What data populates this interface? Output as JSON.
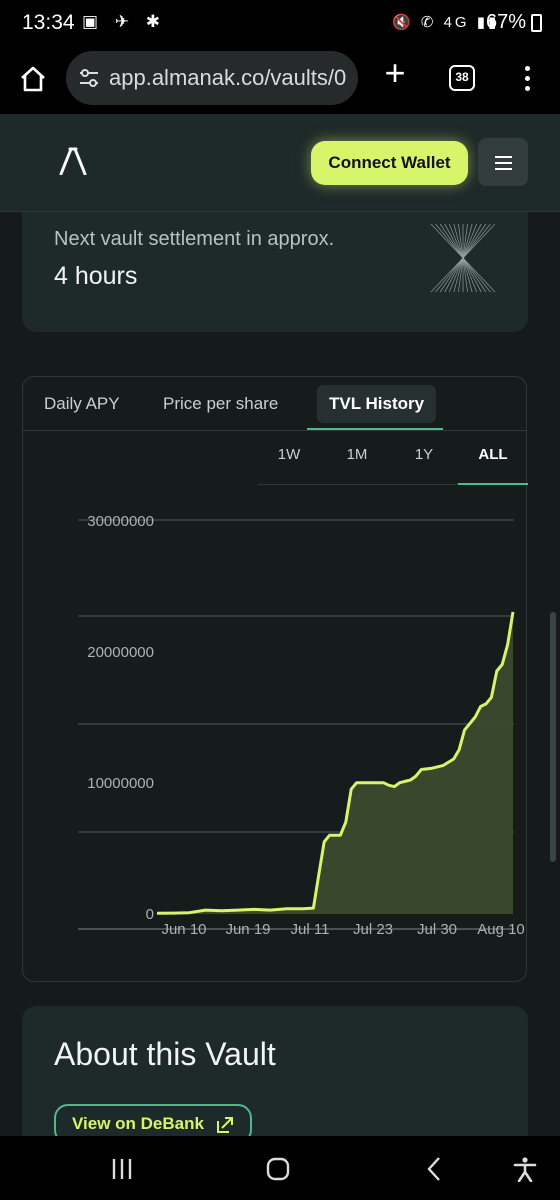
{
  "status_bar": {
    "time": "13:34",
    "app_icons": "▣ ✈ ✱",
    "system_icons": "🔇 ✆ 4G ▮▮",
    "battery": "67%"
  },
  "browser": {
    "url": "app.almanak.co/vaults/0",
    "tab_count": "38"
  },
  "header": {
    "connect_label": "Connect Wallet"
  },
  "settlement": {
    "label": "Next vault settlement in approx.",
    "value": "4 hours"
  },
  "chart_tabs": [
    "Daily APY",
    "Price per share",
    "TVL History"
  ],
  "active_chart_tab": "TVL History",
  "ranges": [
    "1W",
    "1M",
    "1Y",
    "ALL"
  ],
  "active_range": "ALL",
  "chart_data": {
    "type": "area",
    "title": "",
    "xlabel": "",
    "ylabel": "",
    "ylim": [
      0,
      30000000
    ],
    "y_ticks": [
      "30000000",
      "20000000",
      "10000000",
      "0"
    ],
    "x_ticks": [
      "Jun 10",
      "Jun 19",
      "Jul 11",
      "Jul 23",
      "Jul 30",
      "Aug 10"
    ],
    "color": "#d7f56b",
    "fill_color": "#3b4a2e",
    "grid": true,
    "series": [
      {
        "points": [
          [
            0,
            50000
          ],
          [
            3,
            70000
          ],
          [
            6,
            100000
          ],
          [
            9,
            300000
          ],
          [
            12,
            250000
          ],
          [
            15,
            300000
          ],
          [
            18,
            350000
          ],
          [
            21,
            300000
          ],
          [
            24,
            400000
          ],
          [
            27,
            400000
          ],
          [
            29,
            450000
          ],
          [
            30,
            3000000
          ],
          [
            31,
            5500000
          ],
          [
            32,
            6000000
          ],
          [
            34,
            6000000
          ],
          [
            35,
            7000000
          ],
          [
            36,
            9500000
          ],
          [
            37,
            10000000
          ],
          [
            40,
            10000000
          ],
          [
            42,
            10000000
          ],
          [
            43,
            9800000
          ],
          [
            44,
            9700000
          ],
          [
            45,
            10000000
          ],
          [
            47,
            10200000
          ],
          [
            48,
            10500000
          ],
          [
            49,
            11000000
          ],
          [
            51,
            11100000
          ],
          [
            53,
            11300000
          ],
          [
            55,
            11800000
          ],
          [
            56,
            12500000
          ],
          [
            57,
            14000000
          ],
          [
            58,
            14500000
          ],
          [
            59,
            15000000
          ],
          [
            60,
            15800000
          ],
          [
            61,
            16000000
          ],
          [
            62,
            16500000
          ],
          [
            63,
            18500000
          ],
          [
            64,
            19000000
          ],
          [
            65,
            20500000
          ],
          [
            66,
            23000000
          ]
        ]
      }
    ]
  },
  "about": {
    "title": "About this Vault",
    "debank_label": "View on DeBank"
  }
}
